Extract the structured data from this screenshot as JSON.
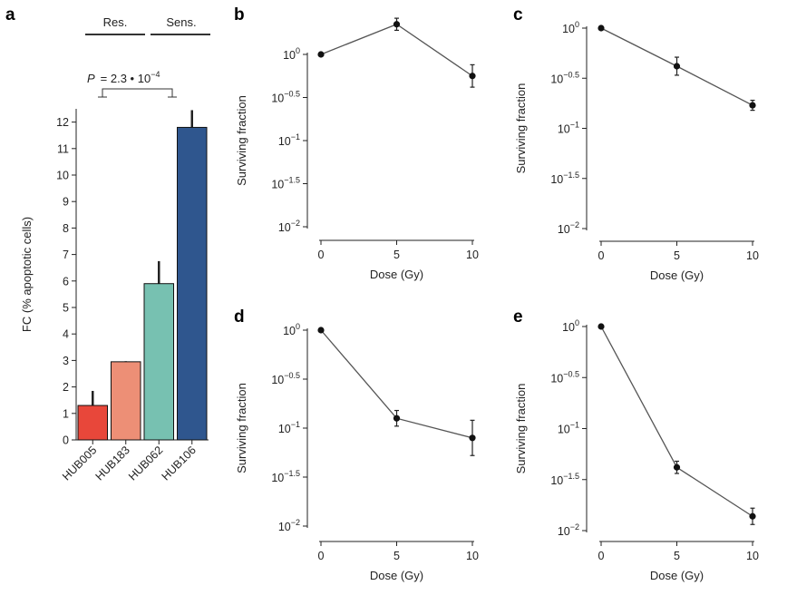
{
  "panel_labels": [
    "a",
    "b",
    "c",
    "d",
    "e"
  ],
  "annotation": {
    "group_labels": [
      "Res.",
      "Sens."
    ],
    "p_value": {
      "prefix": "P",
      "text": "= 2.3 • 10",
      "exp": "−4"
    }
  },
  "chart_data": [
    {
      "id": "a",
      "type": "bar",
      "title": "",
      "xlabel": "",
      "ylabel": "FC (% apoptotic cells)",
      "categories": [
        "HUB005",
        "HUB183",
        "HUB062",
        "HUB106"
      ],
      "values": [
        1.3,
        2.95,
        5.9,
        11.8
      ],
      "err": [
        0.55,
        0.02,
        0.85,
        0.65
      ],
      "colors": [
        "#e8473a",
        "#ed8f76",
        "#77c1b1",
        "#2f568e"
      ],
      "ylim": [
        0,
        12.5
      ],
      "yticks": [
        0,
        1,
        2,
        3,
        4,
        5,
        6,
        7,
        8,
        9,
        10,
        11,
        12
      ],
      "groups": [
        {
          "name": "Res.",
          "members": [
            "HUB005",
            "HUB183"
          ]
        },
        {
          "name": "Sens.",
          "members": [
            "HUB062",
            "HUB106"
          ]
        }
      ],
      "comparison": {
        "between": [
          "Res.",
          "Sens."
        ],
        "p_value": "2.3 • 10^-4"
      }
    },
    {
      "id": "b",
      "type": "line",
      "title": "",
      "xlabel": "Dose (Gy)",
      "ylabel": "Surviving fraction",
      "x": [
        0,
        5,
        10
      ],
      "y_log10": [
        0,
        0.35,
        -0.25
      ],
      "err_log10": [
        0,
        0.07,
        0.13
      ],
      "yscale": "log10",
      "ylim_log10": [
        -2,
        0
      ],
      "xticks": [
        "0",
        "5",
        "10"
      ],
      "ytick_exps": [
        "0",
        "−0.5",
        "−1",
        "−1.5",
        "−2"
      ]
    },
    {
      "id": "c",
      "type": "line",
      "title": "",
      "xlabel": "Dose (Gy)",
      "ylabel": "Surviving fraction",
      "x": [
        0,
        5,
        10
      ],
      "y_log10": [
        0,
        -0.38,
        -0.77
      ],
      "err_log10": [
        0,
        0.09,
        0.05
      ],
      "yscale": "log10",
      "ylim_log10": [
        -2,
        0
      ],
      "xticks": [
        "0",
        "5",
        "10"
      ],
      "ytick_exps": [
        "0",
        "−0.5",
        "−1",
        "−1.5",
        "−2"
      ]
    },
    {
      "id": "d",
      "type": "line",
      "title": "",
      "xlabel": "Dose (Gy)",
      "ylabel": "Surviving fraction",
      "x": [
        0,
        5,
        10
      ],
      "y_log10": [
        0,
        -0.9,
        -1.1
      ],
      "err_log10": [
        0,
        0.08,
        0.18
      ],
      "yscale": "log10",
      "ylim_log10": [
        -2,
        0
      ],
      "xticks": [
        "0",
        "5",
        "10"
      ],
      "ytick_exps": [
        "0",
        "−0.5",
        "−1",
        "−1.5",
        "−2"
      ]
    },
    {
      "id": "e",
      "type": "line",
      "title": "",
      "xlabel": "Dose (Gy)",
      "ylabel": "Surviving fraction",
      "x": [
        0,
        5,
        10
      ],
      "y_log10": [
        0,
        -1.38,
        -1.86
      ],
      "err_log10": [
        0,
        0.06,
        0.08
      ],
      "yscale": "log10",
      "ylim_log10": [
        -2,
        0
      ],
      "xticks": [
        "0",
        "5",
        "10"
      ],
      "ytick_exps": [
        "0",
        "−0.5",
        "−1",
        "−1.5",
        "−2"
      ]
    }
  ]
}
